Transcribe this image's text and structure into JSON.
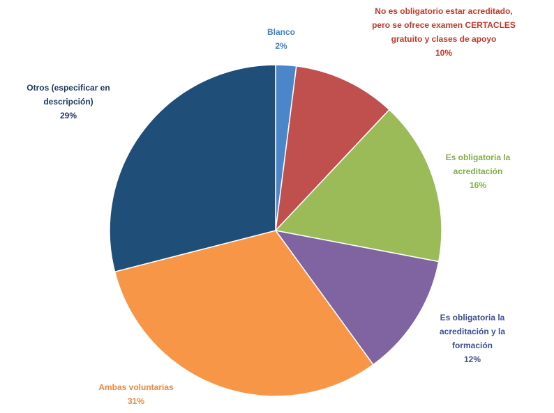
{
  "chart_data": {
    "type": "pie",
    "title": "",
    "slices": [
      {
        "label": "Blanco",
        "percent_label": "2%",
        "value": 2,
        "color": "#4a86c8"
      },
      {
        "label": "No es obligatorio estar acreditado,\npero se ofrece examen CERTACLES\ngratuito y clases de apoyo",
        "percent_label": "10%",
        "value": 10,
        "color": "#c0504d"
      },
      {
        "label": "Es obligatoria la\nacreditación",
        "percent_label": "16%",
        "value": 16,
        "color": "#9bbb59"
      },
      {
        "label": "Es obligatoria la\nacreditación y la\nformación",
        "percent_label": "12%",
        "value": 12,
        "color": "#8064a2"
      },
      {
        "label": "Ambas voluntarias",
        "percent_label": "31%",
        "value": 31,
        "color": "#f79646"
      },
      {
        "label": "Otros (especificar en\ndescripción)",
        "percent_label": "29%",
        "value": 29,
        "color": "#1f4e79"
      }
    ]
  }
}
